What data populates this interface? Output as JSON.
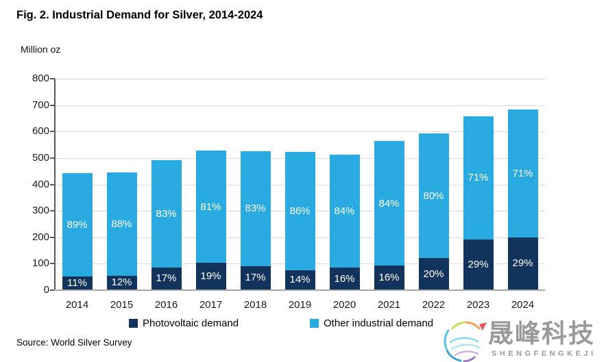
{
  "title": "Fig. 2. Industrial Demand for Silver, 2014-2024",
  "y_axis_title": "Million oz",
  "source": "Source: World Silver Survey",
  "legend": {
    "items": [
      {
        "label": "Photovoltaic demand",
        "color": "#12335C"
      },
      {
        "label": "Other industrial demand",
        "color": "#29ABE2"
      }
    ]
  },
  "watermark": {
    "cjk_text": "晟峰科技",
    "latin_text": "SHENGFENGKEJI",
    "logo": "rainbow-swirl-globe-logo"
  },
  "colors": {
    "photovoltaic": "#12335C",
    "other_industrial": "#29ABE2",
    "gridline": "#D9D9D9",
    "axis_line": "#595959",
    "baseline": "#A6A6A6",
    "bar_label_text": "#FFFFFF",
    "watermark_gray": "#9A9A9A"
  },
  "chart_data": {
    "type": "bar",
    "stacked": true,
    "title": "Fig. 2. Industrial Demand for Silver, 2014-2024",
    "ylabel": "Million oz",
    "xlabel": "",
    "ylim": [
      0,
      800
    ],
    "ytick_step": 100,
    "grid": true,
    "legend_position": "bottom",
    "categories": [
      "2014",
      "2015",
      "2016",
      "2017",
      "2018",
      "2019",
      "2020",
      "2021",
      "2022",
      "2023",
      "2024"
    ],
    "series": [
      {
        "name": "Photovoltaic demand",
        "color": "#12335C",
        "values": [
          48,
          53,
          83,
          100,
          89,
          73,
          82,
          90,
          118,
          190,
          197
        ],
        "pct_labels": [
          "11%",
          "12%",
          "17%",
          "19%",
          "17%",
          "14%",
          "16%",
          "16%",
          "20%",
          "29%",
          "29%"
        ]
      },
      {
        "name": "Other industrial demand",
        "color": "#29ABE2",
        "values": [
          392,
          390,
          407,
          426,
          434,
          448,
          428,
          471,
          472,
          465,
          483
        ],
        "pct_labels": [
          "89%",
          "88%",
          "83%",
          "81%",
          "83%",
          "86%",
          "84%",
          "84%",
          "80%",
          "71%",
          "71%"
        ]
      }
    ],
    "totals": [
      440,
      443,
      490,
      526,
      523,
      521,
      510,
      561,
      590,
      655,
      680
    ]
  }
}
